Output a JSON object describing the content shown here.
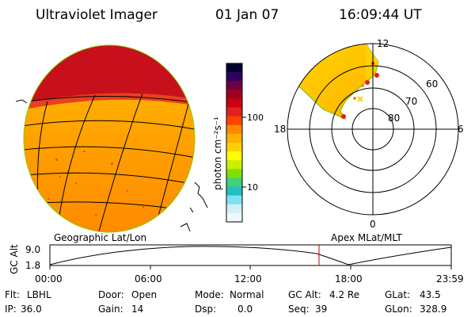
{
  "header": {
    "title": "Ultraviolet Imager",
    "date": "01 Jan 07",
    "time": "16:09:44 UT"
  },
  "colorbar": {
    "unit_label": "photon cm⁻²s⁻¹",
    "tick_labels": [
      "100",
      "10"
    ],
    "colors": [
      "#000033",
      "#300060",
      "#700040",
      "#a00020",
      "#cc0010",
      "#e22020",
      "#ff4400",
      "#ff8800",
      "#ffb000",
      "#ffd000",
      "#ffff00",
      "#c8f000",
      "#80e000",
      "#40d080",
      "#20c0c0",
      "#80e0f0",
      "#d0f0f8",
      "#f0f8fc"
    ]
  },
  "left_panel": {
    "caption": "Geographic Lat/Lon"
  },
  "polar_plot": {
    "caption": "Apex MLat/MLT",
    "mlt_labels": {
      "top": "12",
      "left": "18",
      "right": "6",
      "bottom": "0"
    },
    "mlat_labels": [
      "60",
      "70",
      "80"
    ]
  },
  "altitude_plot": {
    "ylabel": "GC Alt",
    "yticks": [
      "9.0",
      "1.8"
    ],
    "xticks": [
      "00:00",
      "06:00",
      "12:00",
      "18:00",
      "23:59"
    ]
  },
  "status": [
    [
      {
        "label": "Flt:",
        "value": "LBHL"
      },
      {
        "label": "Door:",
        "value": "Open"
      },
      {
        "label": "Mode:",
        "value": "Normal"
      },
      {
        "label": "GC Alt:",
        "value": "4.2 Re"
      },
      {
        "label": "GLat:",
        "value": "43.5"
      }
    ],
    [
      {
        "label": "IP:",
        "value": "36.0"
      },
      {
        "label": "Gain:",
        "value": "14"
      },
      {
        "label": "Dsp:",
        "value": "0.0"
      },
      {
        "label": "Seq:",
        "value": "39"
      },
      {
        "label": "GLon:",
        "value": "328.9"
      }
    ]
  ]
}
